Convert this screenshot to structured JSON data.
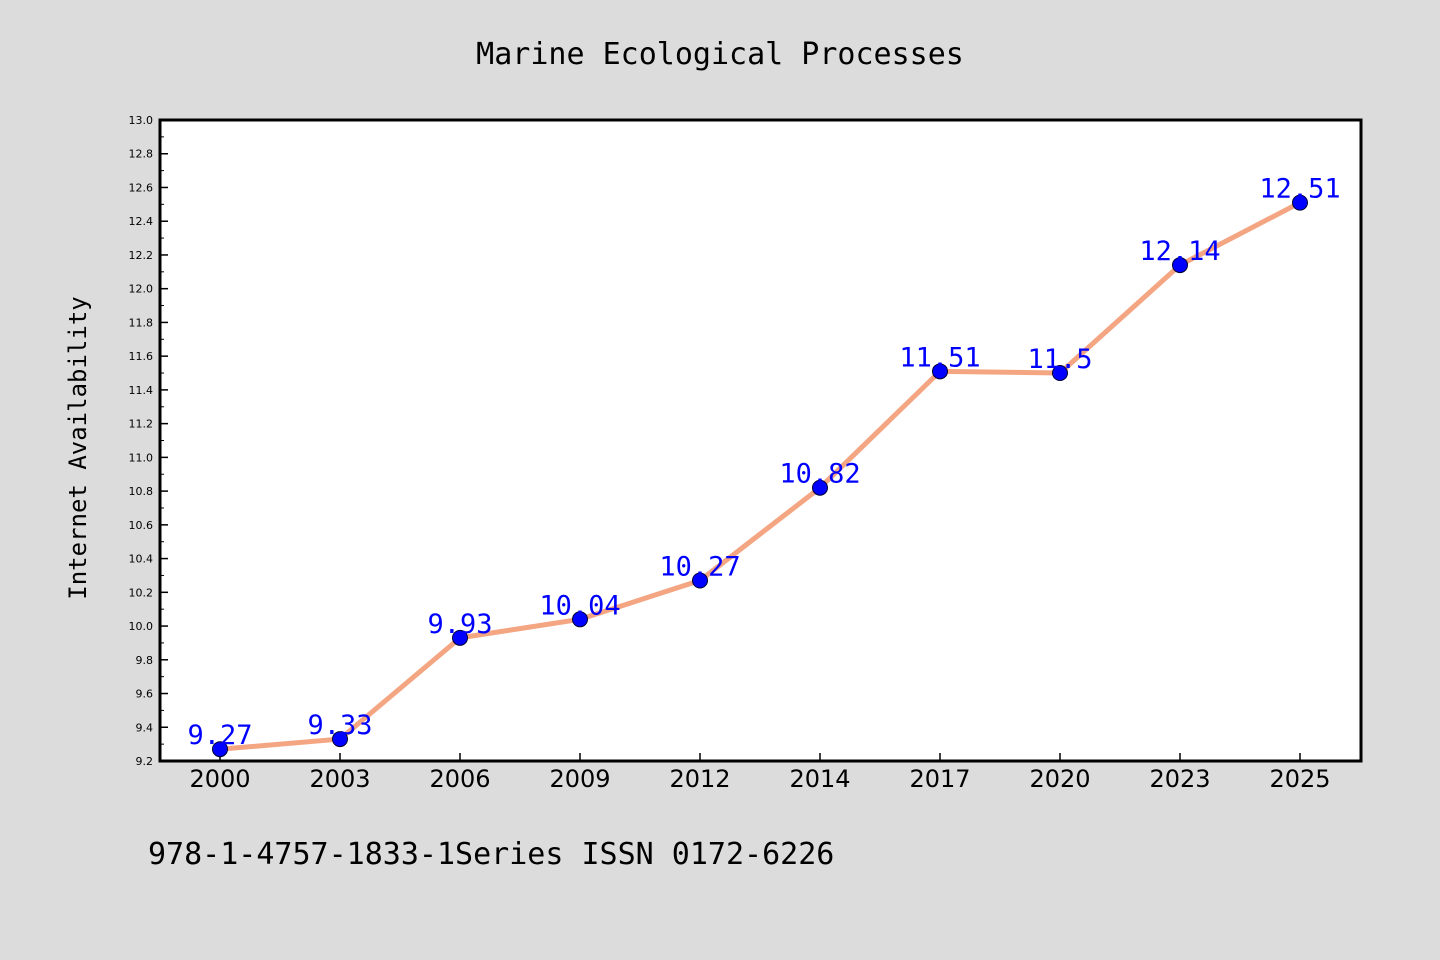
{
  "chart_data": {
    "type": "line",
    "title": "Marine Ecological Processes",
    "xlabel": "",
    "ylabel": "Internet Availability",
    "categories": [
      "2000",
      "2003",
      "2006",
      "2009",
      "2012",
      "2014",
      "2017",
      "2020",
      "2023",
      "2025"
    ],
    "series": [
      {
        "values": [
          9.27,
          9.33,
          9.93,
          10.04,
          10.27,
          10.82,
          11.51,
          11.5,
          12.14,
          12.51
        ],
        "labels": [
          "9.27",
          "9.33",
          "9.93",
          "10.04",
          "10.27",
          "10.82",
          "11.51",
          "11.5",
          "12.14",
          "12.51"
        ]
      }
    ],
    "ylim": [
      9.2,
      13.0
    ],
    "yticks": [
      "9.2",
      "9.4",
      "9.6",
      "9.8",
      "10.0",
      "10.2",
      "10.4",
      "10.6",
      "10.8",
      "11.0",
      "11.2",
      "11.4",
      "11.6",
      "11.8",
      "12.0",
      "12.2",
      "12.4",
      "12.6",
      "12.8",
      "13.0"
    ],
    "grid": false,
    "legend": "none",
    "colors": {
      "background": "#dcdcdc",
      "plot_background": "#ffffff",
      "line": "#f4a582",
      "marker": "#0000ff",
      "data_label": "#0000ff"
    }
  },
  "footer": {
    "text": "978-1-4757-1833-1Series ISSN 0172-6226"
  }
}
